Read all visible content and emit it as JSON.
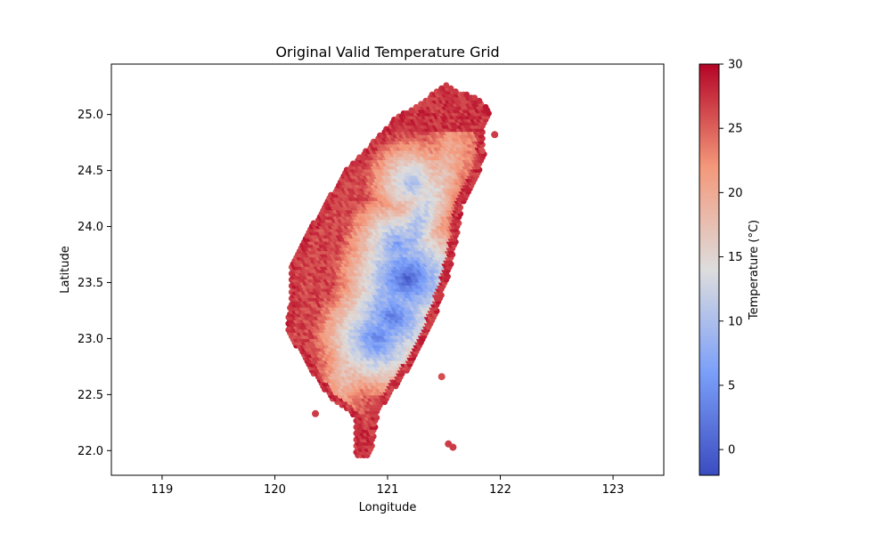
{
  "chart_data": {
    "type": "heatmap",
    "title": "Original Valid Temperature Grid",
    "xlabel": "Longitude",
    "ylabel": "Latitude",
    "xlim": [
      118.55,
      123.45
    ],
    "ylim": [
      21.78,
      25.45
    ],
    "xticks": [
      119,
      120,
      121,
      122,
      123
    ],
    "yticks": [
      22.0,
      22.5,
      23.0,
      23.5,
      24.0,
      24.5,
      25.0
    ],
    "grid": false,
    "colormap": "coolwarm",
    "colorbar": {
      "label": "Temperature (°C)",
      "range": [
        -2,
        30
      ],
      "ticks": [
        0,
        5,
        10,
        15,
        20,
        25,
        30
      ]
    },
    "outline": [
      [
        121.52,
        25.28
      ],
      [
        121.62,
        25.21
      ],
      [
        121.79,
        25.15
      ],
      [
        121.92,
        25.02
      ],
      [
        121.84,
        24.88
      ],
      [
        121.86,
        24.62
      ],
      [
        121.78,
        24.42
      ],
      [
        121.66,
        24.2
      ],
      [
        121.62,
        23.92
      ],
      [
        121.55,
        23.6
      ],
      [
        121.45,
        23.28
      ],
      [
        121.36,
        23.05
      ],
      [
        121.23,
        22.8
      ],
      [
        121.08,
        22.58
      ],
      [
        120.92,
        22.35
      ],
      [
        120.88,
        22.1
      ],
      [
        120.84,
        21.93
      ],
      [
        120.72,
        21.96
      ],
      [
        120.72,
        22.3
      ],
      [
        120.5,
        22.47
      ],
      [
        120.38,
        22.62
      ],
      [
        120.25,
        22.85
      ],
      [
        120.1,
        23.06
      ],
      [
        120.14,
        23.35
      ],
      [
        120.14,
        23.62
      ],
      [
        120.26,
        23.9
      ],
      [
        120.44,
        24.18
      ],
      [
        120.62,
        24.5
      ],
      [
        120.84,
        24.72
      ],
      [
        121.06,
        24.96
      ],
      [
        121.32,
        25.12
      ]
    ],
    "cold_cores": [
      {
        "lon": 121.18,
        "lat": 23.55,
        "temp": 0
      },
      {
        "lon": 121.05,
        "lat": 23.2,
        "temp": 2
      },
      {
        "lon": 120.92,
        "lat": 23.02,
        "temp": 3
      },
      {
        "lon": 121.22,
        "lat": 24.4,
        "temp": 9
      },
      {
        "lon": 121.1,
        "lat": 23.85,
        "temp": 6
      }
    ],
    "islands": [
      {
        "lon": 121.95,
        "lat": 24.82,
        "temp": 27
      },
      {
        "lon": 121.48,
        "lat": 22.66,
        "temp": 26
      },
      {
        "lon": 121.54,
        "lat": 22.06,
        "temp": 27
      },
      {
        "lon": 121.58,
        "lat": 22.03,
        "temp": 27
      },
      {
        "lon": 120.36,
        "lat": 22.33,
        "temp": 27
      }
    ]
  }
}
